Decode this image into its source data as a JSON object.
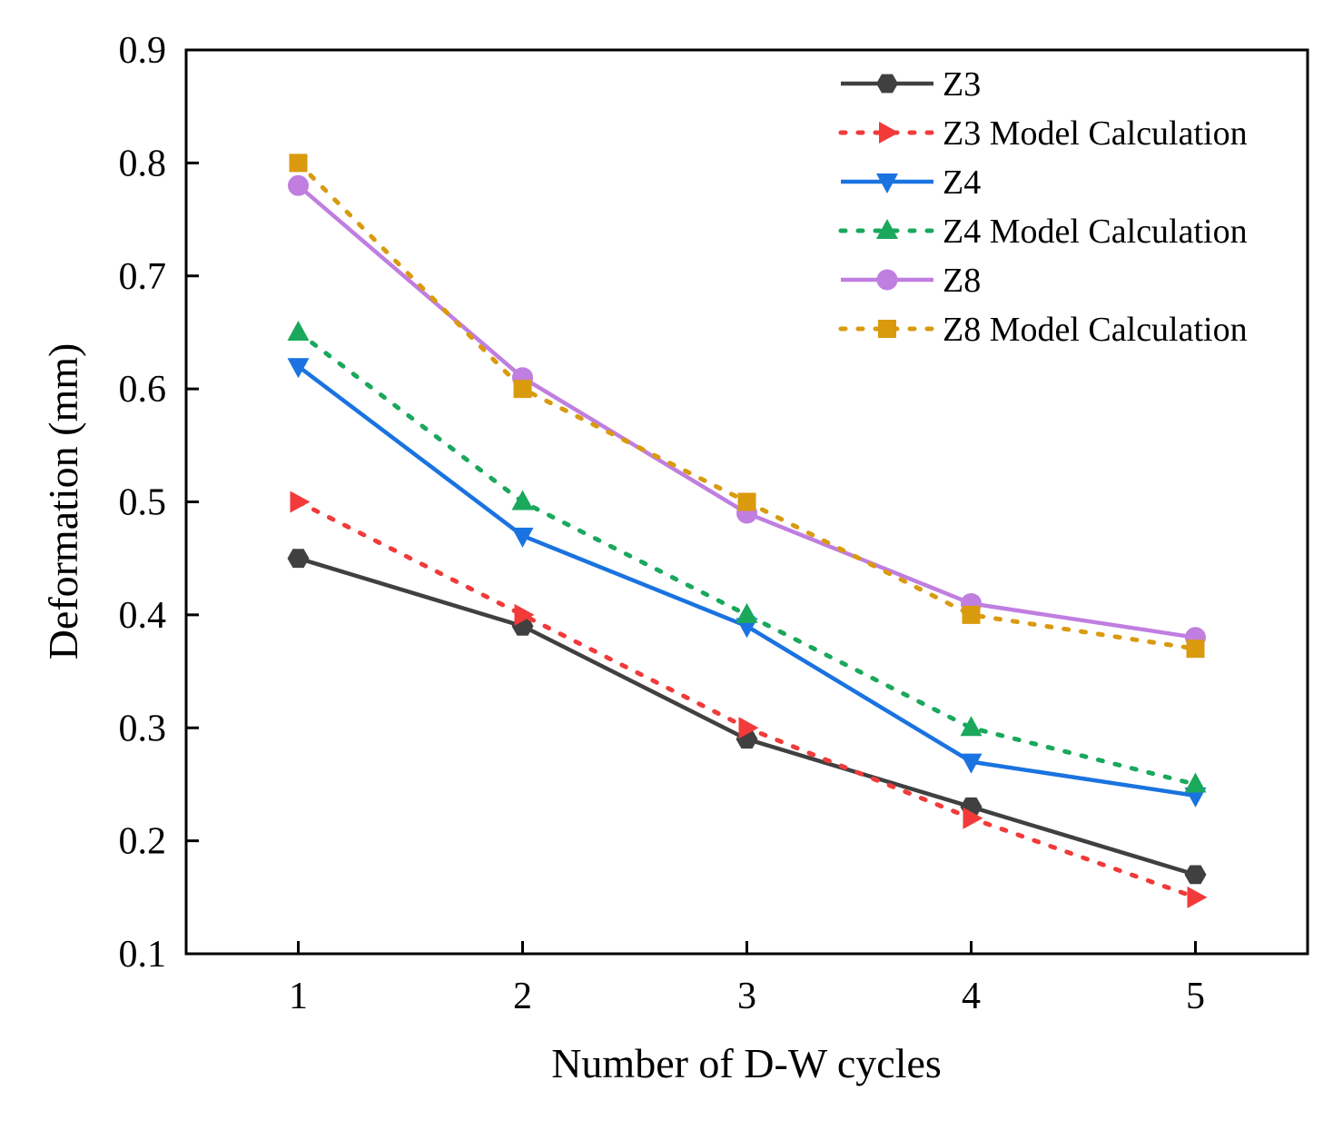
{
  "chart_data": {
    "type": "line",
    "title": "",
    "xlabel": "Number of D-W cycles",
    "ylabel": "Deformation (mm)",
    "x": [
      1,
      2,
      3,
      4,
      5
    ],
    "xticks": [
      "1",
      "2",
      "3",
      "4",
      "5"
    ],
    "yticks": [
      "0.1",
      "0.2",
      "0.3",
      "0.4",
      "0.5",
      "0.6",
      "0.7",
      "0.8",
      "0.9"
    ],
    "xlim": [
      0.5,
      5.5
    ],
    "ylim": [
      0.1,
      0.9
    ],
    "grid": false,
    "legend_position": "top-right",
    "series": [
      {
        "name": "Z3",
        "values": [
          0.45,
          0.39,
          0.29,
          0.23,
          0.17
        ],
        "color": "#404040",
        "style": "solid",
        "marker": "hexagon"
      },
      {
        "name": "Z3 Model Calculation",
        "values": [
          0.5,
          0.4,
          0.3,
          0.22,
          0.15
        ],
        "color": "#f23a3a",
        "style": "dotted",
        "marker": "triangle-right"
      },
      {
        "name": "Z4",
        "values": [
          0.62,
          0.47,
          0.39,
          0.27,
          0.24
        ],
        "color": "#1a73e0",
        "style": "solid",
        "marker": "triangle-down"
      },
      {
        "name": "Z4 Model Calculation",
        "values": [
          0.65,
          0.5,
          0.4,
          0.3,
          0.25
        ],
        "color": "#1aa85c",
        "style": "dotted",
        "marker": "triangle-up"
      },
      {
        "name": "Z8",
        "values": [
          0.78,
          0.61,
          0.49,
          0.41,
          0.38
        ],
        "color": "#c07ee0",
        "style": "solid",
        "marker": "circle"
      },
      {
        "name": "Z8 Model Calculation",
        "values": [
          0.8,
          0.6,
          0.5,
          0.4,
          0.37
        ],
        "color": "#d99a0e",
        "style": "dotted",
        "marker": "square"
      }
    ]
  }
}
